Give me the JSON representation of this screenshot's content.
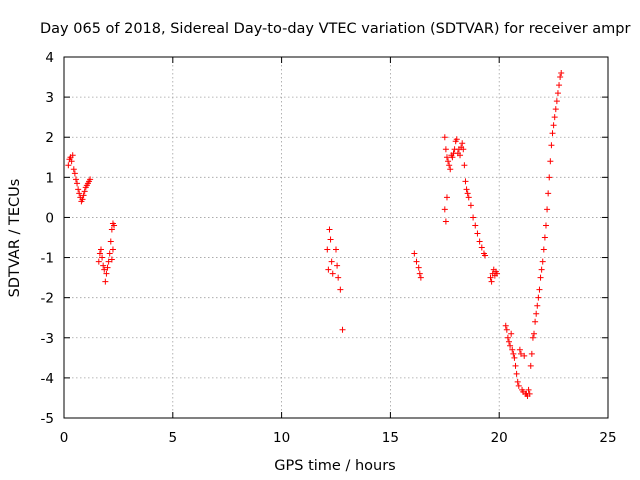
{
  "chart_data": {
    "type": "scatter",
    "title": "Day 065 of 2018, Sidereal Day-to-day VTEC variation (SDTVAR) for receiver ampr",
    "xlabel": "GPS time / hours",
    "ylabel": "SDTVAR / TECUs",
    "xlim": [
      0,
      25
    ],
    "ylim": [
      -5,
      4
    ],
    "xticks": [
      0,
      5,
      10,
      15,
      20,
      25
    ],
    "yticks": [
      -5,
      -4,
      -3,
      -2,
      -1,
      0,
      1,
      2,
      3,
      4
    ],
    "grid": true,
    "marker": "+",
    "color": "#ff0000",
    "series": [
      {
        "name": "SDTVAR",
        "points": [
          [
            0.2,
            1.3
          ],
          [
            0.25,
            1.45
          ],
          [
            0.3,
            1.5
          ],
          [
            0.35,
            1.4
          ],
          [
            0.4,
            1.55
          ],
          [
            0.45,
            1.2
          ],
          [
            0.5,
            1.1
          ],
          [
            0.55,
            0.95
          ],
          [
            0.6,
            0.85
          ],
          [
            0.65,
            0.7
          ],
          [
            0.7,
            0.6
          ],
          [
            0.75,
            0.5
          ],
          [
            0.8,
            0.4
          ],
          [
            0.85,
            0.45
          ],
          [
            0.9,
            0.55
          ],
          [
            0.95,
            0.65
          ],
          [
            1.0,
            0.75
          ],
          [
            1.05,
            0.8
          ],
          [
            1.1,
            0.85
          ],
          [
            1.15,
            0.9
          ],
          [
            1.2,
            0.95
          ],
          [
            1.6,
            -1.1
          ],
          [
            1.65,
            -0.9
          ],
          [
            1.7,
            -0.8
          ],
          [
            1.75,
            -1.0
          ],
          [
            1.8,
            -1.2
          ],
          [
            1.85,
            -1.3
          ],
          [
            1.9,
            -1.6
          ],
          [
            1.95,
            -1.4
          ],
          [
            2.0,
            -1.25
          ],
          [
            2.05,
            -1.1
          ],
          [
            2.1,
            -0.9
          ],
          [
            2.15,
            -0.6
          ],
          [
            2.2,
            -0.3
          ],
          [
            2.25,
            -0.15
          ],
          [
            2.3,
            -0.2
          ],
          [
            2.25,
            -0.8
          ],
          [
            2.2,
            -1.05
          ],
          [
            12.1,
            -0.8
          ],
          [
            12.15,
            -1.3
          ],
          [
            12.2,
            -0.3
          ],
          [
            12.25,
            -0.55
          ],
          [
            12.3,
            -1.1
          ],
          [
            12.35,
            -1.4
          ],
          [
            12.5,
            -0.8
          ],
          [
            12.55,
            -1.2
          ],
          [
            12.6,
            -1.5
          ],
          [
            12.7,
            -1.8
          ],
          [
            12.8,
            -2.8
          ],
          [
            16.1,
            -0.9
          ],
          [
            16.2,
            -1.1
          ],
          [
            16.3,
            -1.25
          ],
          [
            16.35,
            -1.4
          ],
          [
            16.4,
            -1.5
          ],
          [
            17.5,
            2.0
          ],
          [
            17.55,
            1.7
          ],
          [
            17.6,
            1.5
          ],
          [
            17.5,
            0.2
          ],
          [
            17.55,
            -0.1
          ],
          [
            17.6,
            0.5
          ],
          [
            17.65,
            1.4
          ],
          [
            17.7,
            1.3
          ],
          [
            17.75,
            1.2
          ],
          [
            17.8,
            1.55
          ],
          [
            17.85,
            1.5
          ],
          [
            17.9,
            1.6
          ],
          [
            17.95,
            1.7
          ],
          [
            18.0,
            1.9
          ],
          [
            18.05,
            1.95
          ],
          [
            18.1,
            1.6
          ],
          [
            18.15,
            1.7
          ],
          [
            18.2,
            1.55
          ],
          [
            18.25,
            1.75
          ],
          [
            18.3,
            1.85
          ],
          [
            18.35,
            1.7
          ],
          [
            18.4,
            1.3
          ],
          [
            18.45,
            0.9
          ],
          [
            18.5,
            0.7
          ],
          [
            18.55,
            0.6
          ],
          [
            18.6,
            0.5
          ],
          [
            18.7,
            0.3
          ],
          [
            18.8,
            0.0
          ],
          [
            18.9,
            -0.2
          ],
          [
            19.0,
            -0.4
          ],
          [
            19.1,
            -0.6
          ],
          [
            19.2,
            -0.75
          ],
          [
            19.3,
            -0.9
          ],
          [
            19.35,
            -0.95
          ],
          [
            19.6,
            -1.5
          ],
          [
            19.65,
            -1.6
          ],
          [
            19.7,
            -1.4
          ],
          [
            19.75,
            -1.3
          ],
          [
            19.8,
            -1.45
          ],
          [
            19.85,
            -1.35
          ],
          [
            19.9,
            -1.4
          ],
          [
            20.3,
            -2.7
          ],
          [
            20.35,
            -2.8
          ],
          [
            20.4,
            -3.0
          ],
          [
            20.45,
            -3.1
          ],
          [
            20.5,
            -3.2
          ],
          [
            20.55,
            -2.9
          ],
          [
            20.6,
            -3.3
          ],
          [
            20.65,
            -3.4
          ],
          [
            20.7,
            -3.5
          ],
          [
            20.75,
            -3.7
          ],
          [
            20.8,
            -3.9
          ],
          [
            20.85,
            -4.1
          ],
          [
            20.9,
            -4.2
          ],
          [
            20.95,
            -3.3
          ],
          [
            21.0,
            -3.4
          ],
          [
            21.05,
            -4.3
          ],
          [
            21.1,
            -4.35
          ],
          [
            21.15,
            -3.45
          ],
          [
            21.2,
            -4.4
          ],
          [
            21.25,
            -4.4
          ],
          [
            21.3,
            -4.45
          ],
          [
            21.35,
            -4.3
          ],
          [
            21.4,
            -4.4
          ],
          [
            21.45,
            -3.7
          ],
          [
            21.5,
            -3.4
          ],
          [
            21.55,
            -3.0
          ],
          [
            21.6,
            -2.9
          ],
          [
            21.65,
            -2.6
          ],
          [
            21.7,
            -2.4
          ],
          [
            21.75,
            -2.2
          ],
          [
            21.8,
            -2.0
          ],
          [
            21.85,
            -1.8
          ],
          [
            21.9,
            -1.5
          ],
          [
            21.95,
            -1.3
          ],
          [
            22.0,
            -1.1
          ],
          [
            22.05,
            -0.8
          ],
          [
            22.1,
            -0.5
          ],
          [
            22.15,
            -0.2
          ],
          [
            22.2,
            0.2
          ],
          [
            22.25,
            0.6
          ],
          [
            22.3,
            1.0
          ],
          [
            22.35,
            1.4
          ],
          [
            22.4,
            1.8
          ],
          [
            22.45,
            2.1
          ],
          [
            22.5,
            2.3
          ],
          [
            22.55,
            2.5
          ],
          [
            22.6,
            2.7
          ],
          [
            22.65,
            2.9
          ],
          [
            22.7,
            3.1
          ],
          [
            22.75,
            3.3
          ],
          [
            22.8,
            3.5
          ],
          [
            22.85,
            3.6
          ]
        ]
      }
    ]
  }
}
